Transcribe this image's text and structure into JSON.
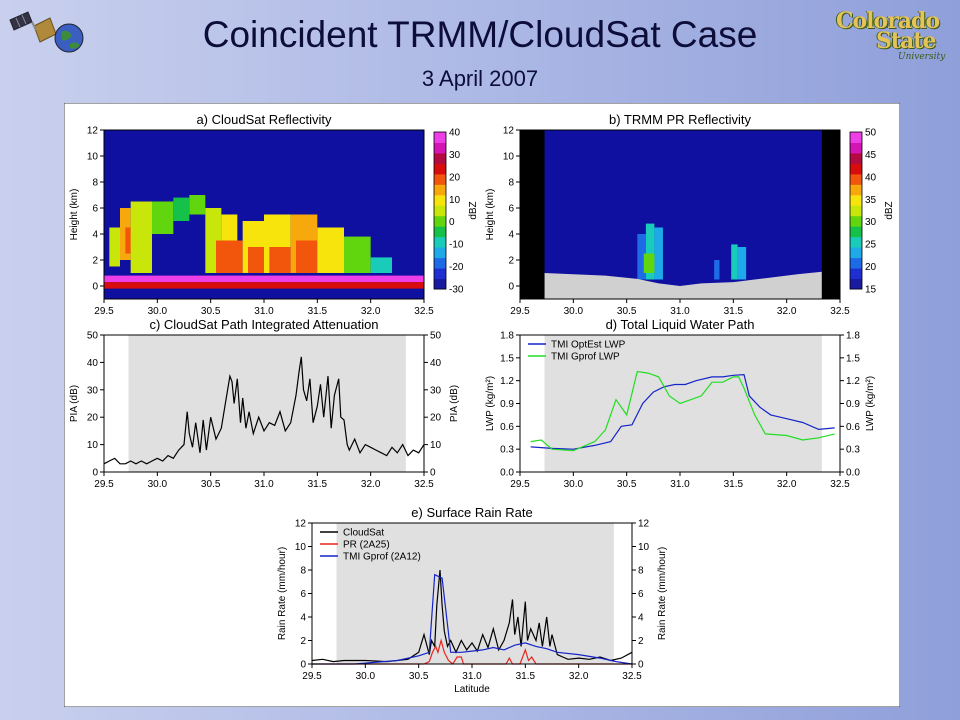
{
  "slide": {
    "title": "Coincident TRMM/CloudSat Case",
    "subtitle": "3 April 2007",
    "logo_right": {
      "line1": "Colorado",
      "line2": "State",
      "line3": "University"
    }
  },
  "colors": {
    "background": "#aab6e4",
    "no_data_shade": "#e0e0e0",
    "pr_swath_edge": "#000000",
    "black_series": "#000000",
    "red_series": "#e8251e",
    "blue_series": "#1424c8",
    "green_series": "#22dd22",
    "field_background": "#1010a0"
  },
  "chart_data": [
    {
      "id": "a",
      "type": "heatmap",
      "title": "a) CloudSat Reflectivity",
      "ylabel": "Height (km)",
      "xlim": [
        29.5,
        32.5
      ],
      "ylim": [
        -1,
        12
      ],
      "x_ticks": [
        "29.5",
        "30.0",
        "30.5",
        "31.0",
        "31.5",
        "32.0",
        "32.5"
      ],
      "y_ticks": [
        "0",
        "2",
        "4",
        "6",
        "8",
        "10",
        "12"
      ],
      "colorbar": {
        "label": "dBZ",
        "ticks": [
          "-30",
          "-20",
          "-10",
          "0",
          "10",
          "20",
          "30",
          "40"
        ],
        "colors": [
          "#1a1aa0",
          "#1e2fd2",
          "#1e6be8",
          "#1ea9e8",
          "#19cbb9",
          "#16c14a",
          "#61d50e",
          "#c8e60a",
          "#f6e40c",
          "#f7a80c",
          "#f2560c",
          "#d80c0c",
          "#b40a42",
          "#d514b4",
          "#ee3ee8"
        ]
      },
      "cells": [
        {
          "x": [
            29.5,
            32.5
          ],
          "y": [
            0.3,
            0.8
          ],
          "dbz": 40
        },
        {
          "x": [
            29.5,
            32.5
          ],
          "y": [
            -0.2,
            0.3
          ],
          "dbz": 25
        },
        {
          "x": [
            29.55,
            29.65
          ],
          "y": [
            1.5,
            4.5
          ],
          "dbz": 5
        },
        {
          "x": [
            29.65,
            29.75
          ],
          "y": [
            2,
            6
          ],
          "dbz": 15
        },
        {
          "x": [
            29.7,
            29.8
          ],
          "y": [
            2.5,
            4.5
          ],
          "dbz": 20
        },
        {
          "x": [
            29.75,
            29.95
          ],
          "y": [
            1,
            6.5
          ],
          "dbz": 5
        },
        {
          "x": [
            29.95,
            30.15
          ],
          "y": [
            4,
            6.5
          ],
          "dbz": 0
        },
        {
          "x": [
            30.15,
            30.3
          ],
          "y": [
            5,
            6.8
          ],
          "dbz": -5
        },
        {
          "x": [
            30.3,
            30.45
          ],
          "y": [
            5.5,
            7
          ],
          "dbz": 0
        },
        {
          "x": [
            30.45,
            30.6
          ],
          "y": [
            1,
            6
          ],
          "dbz": 5
        },
        {
          "x": [
            30.6,
            30.75
          ],
          "y": [
            1,
            5.5
          ],
          "dbz": 10
        },
        {
          "x": [
            30.55,
            30.8
          ],
          "y": [
            1,
            3.5
          ],
          "dbz": 20
        },
        {
          "x": [
            30.8,
            31.0
          ],
          "y": [
            1,
            5
          ],
          "dbz": 10
        },
        {
          "x": [
            30.85,
            31.0
          ],
          "y": [
            1,
            3
          ],
          "dbz": 20
        },
        {
          "x": [
            31.0,
            31.25
          ],
          "y": [
            1,
            5.5
          ],
          "dbz": 10
        },
        {
          "x": [
            31.05,
            31.25
          ],
          "y": [
            1,
            3
          ],
          "dbz": 20
        },
        {
          "x": [
            31.25,
            31.5
          ],
          "y": [
            1,
            5.5
          ],
          "dbz": 15
        },
        {
          "x": [
            31.3,
            31.5
          ],
          "y": [
            1,
            3.5
          ],
          "dbz": 20
        },
        {
          "x": [
            31.5,
            31.75
          ],
          "y": [
            1,
            4.5
          ],
          "dbz": 10
        },
        {
          "x": [
            31.75,
            32.0
          ],
          "y": [
            1,
            3.8
          ],
          "dbz": 0
        },
        {
          "x": [
            32.0,
            32.2
          ],
          "y": [
            1,
            2.2
          ],
          "dbz": -10
        }
      ]
    },
    {
      "id": "b",
      "type": "heatmap",
      "title": "b) TRMM PR Reflectivity",
      "ylabel": "Height (km)",
      "xlim": [
        29.5,
        32.5
      ],
      "ylim": [
        -1,
        12
      ],
      "x_ticks": [
        "29.5",
        "30.0",
        "30.5",
        "31.0",
        "31.5",
        "32.0",
        "32.5"
      ],
      "y_ticks": [
        "0",
        "2",
        "4",
        "6",
        "8",
        "10",
        "12"
      ],
      "swath_edges": [
        [
          29.5,
          29.73
        ],
        [
          32.33,
          32.5
        ]
      ],
      "surface": [
        [
          29.73,
          1
        ],
        [
          30.0,
          0.9
        ],
        [
          30.3,
          0.8
        ],
        [
          30.6,
          0.55
        ],
        [
          30.8,
          0.2
        ],
        [
          31.0,
          0
        ],
        [
          31.2,
          0.2
        ],
        [
          31.5,
          0.3
        ],
        [
          31.8,
          0.6
        ],
        [
          32.1,
          0.9
        ],
        [
          32.33,
          1.1
        ]
      ],
      "colorbar": {
        "label": "dBZ",
        "ticks": [
          "15",
          "20",
          "25",
          "30",
          "35",
          "40",
          "45",
          "50"
        ],
        "colors": [
          "#1a1aa0",
          "#1e2fd2",
          "#1e6be8",
          "#1ea9e8",
          "#19cbb9",
          "#16c14a",
          "#61d50e",
          "#c8e60a",
          "#f6e40c",
          "#f7a80c",
          "#f2560c",
          "#d80c0c",
          "#b40a42",
          "#d514b4",
          "#ee3ee8"
        ]
      },
      "cells": [
        {
          "x": [
            30.6,
            30.68
          ],
          "y": [
            0.5,
            4
          ],
          "dbz": 22
        },
        {
          "x": [
            30.68,
            30.76
          ],
          "y": [
            0.5,
            4.8
          ],
          "dbz": 27
        },
        {
          "x": [
            30.76,
            30.84
          ],
          "y": [
            0.5,
            4.5
          ],
          "dbz": 24
        },
        {
          "x": [
            30.66,
            30.76
          ],
          "y": [
            1,
            2.5
          ],
          "dbz": 30
        },
        {
          "x": [
            31.32,
            31.37
          ],
          "y": [
            0.5,
            2
          ],
          "dbz": 20
        },
        {
          "x": [
            31.48,
            31.54
          ],
          "y": [
            0.5,
            3.2
          ],
          "dbz": 25
        },
        {
          "x": [
            31.54,
            31.62
          ],
          "y": [
            0.5,
            3
          ],
          "dbz": 23
        }
      ]
    },
    {
      "id": "c",
      "type": "line",
      "title": "c) CloudSat Path Integrated Attenuation",
      "ylabel": "PIA (dB)",
      "xlim": [
        29.5,
        32.5
      ],
      "ylim": [
        0,
        50
      ],
      "x_ticks": [
        "29.5",
        "30.0",
        "30.5",
        "31.0",
        "31.5",
        "32.0",
        "32.5"
      ],
      "y_ticks": [
        "0",
        "10",
        "20",
        "30",
        "40",
        "50"
      ],
      "shade_x": [
        29.73,
        32.33
      ],
      "series": [
        {
          "name": "",
          "color": "#000000",
          "x": [
            29.5,
            29.55,
            29.6,
            29.65,
            29.7,
            29.75,
            29.8,
            29.85,
            29.9,
            29.95,
            30.0,
            30.05,
            30.1,
            30.15,
            30.2,
            30.25,
            30.28,
            30.3,
            30.33,
            30.36,
            30.4,
            30.43,
            30.46,
            30.5,
            30.55,
            30.6,
            30.65,
            30.68,
            30.7,
            30.72,
            30.75,
            30.78,
            30.8,
            30.83,
            30.86,
            30.9,
            30.95,
            31.0,
            31.05,
            31.1,
            31.15,
            31.2,
            31.25,
            31.3,
            31.33,
            31.35,
            31.37,
            31.4,
            31.43,
            31.46,
            31.5,
            31.53,
            31.56,
            31.6,
            31.63,
            31.66,
            31.7,
            31.72,
            31.75,
            31.78,
            31.8,
            31.85,
            31.9,
            31.95,
            32.0,
            32.05,
            32.1,
            32.15,
            32.2,
            32.25,
            32.3,
            32.35,
            32.4,
            32.45,
            32.5
          ],
          "values": [
            3,
            4,
            5,
            3,
            3,
            4,
            3,
            4,
            3,
            4,
            5,
            4,
            6,
            5,
            8,
            10,
            22,
            14,
            9,
            18,
            7,
            19,
            8,
            20,
            12,
            16,
            28,
            35,
            33,
            25,
            34,
            18,
            27,
            16,
            22,
            14,
            20,
            15,
            18,
            17,
            22,
            15,
            18,
            28,
            37,
            42,
            30,
            26,
            34,
            18,
            24,
            32,
            20,
            35,
            16,
            28,
            34,
            20,
            19,
            10,
            8,
            12,
            7,
            10,
            9,
            8,
            7,
            6,
            9,
            7,
            10,
            6,
            8,
            7,
            10
          ]
        }
      ]
    },
    {
      "id": "d",
      "type": "line",
      "title": "d) Total Liquid Water Path",
      "ylabel": "LWP (kg/m²)",
      "xlim": [
        29.5,
        32.5
      ],
      "ylim": [
        0,
        1.8
      ],
      "x_ticks": [
        "29.5",
        "30.0",
        "30.5",
        "31.0",
        "31.5",
        "32.0",
        "32.5"
      ],
      "y_ticks": [
        "0.0",
        "0.3",
        "0.6",
        "0.9",
        "1.2",
        "1.5",
        "1.8"
      ],
      "shade_x": [
        29.73,
        32.33
      ],
      "legend_position": "top-left",
      "series": [
        {
          "name": "TMI OptEst LWP",
          "color": "#1424c8",
          "x": [
            29.6,
            29.8,
            30.0,
            30.2,
            30.35,
            30.45,
            30.55,
            30.65,
            30.75,
            30.85,
            30.95,
            31.05,
            31.15,
            31.3,
            31.4,
            31.5,
            31.6,
            31.65,
            31.75,
            31.85,
            32.0,
            32.15,
            32.3,
            32.45
          ],
          "values": [
            0.33,
            0.31,
            0.3,
            0.35,
            0.4,
            0.6,
            0.62,
            0.9,
            1.05,
            1.12,
            1.15,
            1.15,
            1.2,
            1.25,
            1.25,
            1.27,
            1.28,
            1.0,
            0.85,
            0.75,
            0.7,
            0.65,
            0.56,
            0.58
          ]
        },
        {
          "name": "TMI Gprof LWP",
          "color": "#22dd22",
          "x": [
            29.6,
            29.7,
            29.8,
            30.0,
            30.2,
            30.3,
            30.4,
            30.5,
            30.6,
            30.7,
            30.8,
            30.9,
            31.0,
            31.1,
            31.2,
            31.3,
            31.4,
            31.5,
            31.55,
            31.6,
            31.7,
            31.8,
            32.0,
            32.15,
            32.3,
            32.45
          ],
          "values": [
            0.4,
            0.42,
            0.3,
            0.28,
            0.4,
            0.55,
            0.95,
            0.75,
            1.32,
            1.3,
            1.25,
            1.0,
            0.9,
            0.95,
            1.0,
            1.18,
            1.18,
            1.25,
            1.25,
            1.1,
            0.75,
            0.5,
            0.48,
            0.42,
            0.45,
            0.5
          ]
        }
      ]
    },
    {
      "id": "e",
      "type": "line",
      "title": "e) Surface Rain Rate",
      "xlabel": "Latitude",
      "ylabel": "Rain Rate (mm/hour)",
      "xlim": [
        29.5,
        32.5
      ],
      "ylim": [
        0,
        12
      ],
      "x_ticks": [
        "29.5",
        "30.0",
        "30.5",
        "31.0",
        "31.5",
        "32.0",
        "32.5"
      ],
      "y_ticks": [
        "0",
        "2",
        "4",
        "6",
        "8",
        "10",
        "12"
      ],
      "shade_x": [
        29.73,
        32.33
      ],
      "legend_position": "top-left",
      "series": [
        {
          "name": "CloudSat",
          "color": "#000000",
          "x": [
            29.5,
            29.6,
            29.7,
            29.8,
            30.0,
            30.2,
            30.4,
            30.5,
            30.55,
            30.6,
            30.62,
            30.65,
            30.67,
            30.7,
            30.72,
            30.74,
            30.77,
            30.8,
            30.85,
            30.9,
            30.95,
            31.0,
            31.05,
            31.1,
            31.15,
            31.2,
            31.25,
            31.3,
            31.35,
            31.38,
            31.4,
            31.43,
            31.46,
            31.5,
            31.52,
            31.55,
            31.6,
            31.63,
            31.66,
            31.7,
            31.73,
            31.75,
            31.8,
            31.85,
            31.9,
            32.0,
            32.1,
            32.2,
            32.3,
            32.4,
            32.5
          ],
          "values": [
            0.3,
            0.4,
            0.2,
            0.3,
            0.3,
            0.2,
            0.4,
            1,
            2.5,
            0.8,
            2,
            1.5,
            5,
            8,
            5,
            2.8,
            1.5,
            2,
            1,
            2,
            1.2,
            1.8,
            1.1,
            2.5,
            1.4,
            3,
            1.2,
            2,
            3.5,
            5.5,
            2.5,
            4,
            1.5,
            5.3,
            2,
            3,
            2,
            3.5,
            1.5,
            4,
            1.5,
            2.5,
            0.8,
            0.6,
            0.4,
            0.5,
            0.4,
            0.6,
            0.3,
            0.5,
            1
          ]
        },
        {
          "name": "PR (2A25)",
          "color": "#e8251e",
          "x": [
            29.5,
            30.55,
            30.6,
            30.63,
            30.66,
            30.68,
            30.71,
            30.74,
            30.78,
            30.82,
            30.86,
            30.9,
            30.92,
            30.95,
            31.2,
            31.32,
            31.35,
            31.38,
            31.45,
            31.5,
            31.53,
            31.56,
            31.6,
            31.7,
            32.5
          ],
          "values": [
            0,
            0,
            0.2,
            1,
            1.5,
            1,
            2,
            1,
            0.3,
            0,
            0.6,
            0.6,
            0,
            0,
            0,
            0,
            0.5,
            0,
            0,
            1.2,
            0.3,
            0.6,
            0,
            0,
            0
          ]
        },
        {
          "name": "TMI Gprof (2A12)",
          "color": "#1424c8",
          "x": [
            29.5,
            29.75,
            29.9,
            30.3,
            30.5,
            30.6,
            30.65,
            30.72,
            30.8,
            30.9,
            31.0,
            31.1,
            31.2,
            31.3,
            31.4,
            31.5,
            31.6,
            31.7,
            31.8,
            32.0,
            32.2,
            32.35,
            32.5
          ],
          "values": [
            0,
            0,
            0,
            0.3,
            0.7,
            1,
            7.6,
            7.3,
            1,
            1,
            1.1,
            1.2,
            1.4,
            1.2,
            1.6,
            1.8,
            1.5,
            1.3,
            1.0,
            0.8,
            0.5,
            0.2,
            0
          ]
        }
      ]
    }
  ]
}
